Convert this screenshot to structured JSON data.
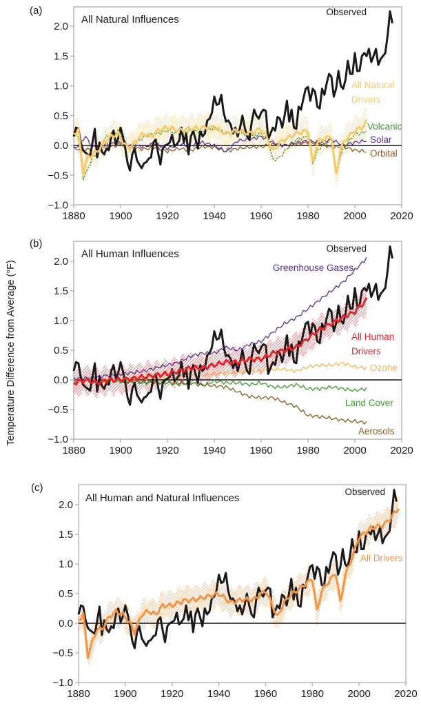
{
  "chart_data": {
    "type": "line",
    "ylabel": "Temperature Difference from Average (°F)",
    "xlim": [
      1880,
      2020
    ],
    "ylim": [
      -1.0,
      2.25
    ],
    "xticks": [
      1880,
      1900,
      1920,
      1940,
      1960,
      1980,
      2000,
      2020
    ],
    "yticks": [
      -1.0,
      -0.5,
      0.0,
      0.5,
      1.0,
      1.5,
      2.0
    ],
    "xtick_labels": [
      "1880",
      "1900",
      "1920",
      "1940",
      "1960",
      "1980",
      "2000",
      "2020"
    ],
    "ytick_labels": [
      "−1.0",
      "−0.5",
      "0.0",
      "0.5",
      "1.0",
      "1.5",
      "2.0"
    ],
    "grid": false,
    "zero_line": true,
    "observed": {
      "name": "Observed",
      "color": "#1a1a1a",
      "start_year": 1880,
      "values": [
        0.15,
        0.3,
        0.28,
        0.05,
        -0.08,
        -0.12,
        -0.15,
        -0.18,
        0.05,
        0.28,
        -0.2,
        0.05,
        -0.1,
        -0.15,
        -0.05,
        -0.08,
        0.15,
        0.25,
        0.02,
        0.12,
        0.3,
        0.15,
        -0.05,
        -0.3,
        -0.42,
        -0.15,
        -0.05,
        -0.25,
        -0.32,
        -0.38,
        -0.3,
        -0.28,
        -0.22,
        -0.2,
        0.05,
        0.1,
        -0.12,
        -0.32,
        -0.05,
        0.0,
        0.02,
        0.05,
        0.18,
        -0.02,
        0.02,
        0.08,
        0.3,
        0.05,
        0.2,
        -0.15,
        0.15,
        0.25,
        0.1,
        -0.05,
        0.25,
        0.15,
        0.2,
        0.42,
        0.45,
        0.55,
        0.82,
        0.68,
        0.7,
        0.85,
        0.55,
        0.4,
        0.42,
        0.35,
        0.2,
        0.3,
        0.15,
        0.3,
        0.5,
        0.3,
        0.15,
        0.1,
        0.4,
        0.6,
        0.5,
        0.45,
        0.55,
        0.6,
        0.58,
        0.1,
        0.2,
        0.3,
        0.25,
        0.48,
        0.45,
        0.3,
        0.5,
        0.75,
        0.4,
        0.6,
        0.3,
        0.28,
        0.65,
        0.6,
        0.78,
        0.95,
        0.98,
        0.75,
        0.95,
        0.9,
        0.65,
        0.62,
        0.95,
        0.85,
        1.05,
        1.2,
        1.15,
        0.82,
        0.95,
        1.25,
        1.0,
        0.95,
        1.1,
        1.42,
        1.2,
        1.2,
        1.55,
        1.25,
        1.25,
        1.5,
        1.55,
        1.5,
        1.62,
        1.4,
        1.5,
        1.62,
        1.35,
        1.45,
        1.5,
        1.55,
        1.85,
        2.25,
        2.05
      ]
    },
    "panels": [
      {
        "letter": "(a)",
        "title": "All Natural Influences",
        "band": {
          "name": "All Natural Drivers range",
          "color": "#f7c96a",
          "series": "all_natural"
        },
        "series": [
          {
            "key": "orbital",
            "name": "Orbital",
            "color": "#8a5a1c",
            "width": "thin",
            "x": [
              1880,
              1885,
              1890,
              1895,
              1900,
              1905,
              1910,
              1915,
              1920,
              1925,
              1930,
              1935,
              1940,
              1945,
              1950,
              1955,
              1960,
              1965,
              1970,
              1975,
              1980,
              1985,
              1990,
              1995,
              2000,
              2005
            ],
            "y": [
              -0.05,
              -0.08,
              0.0,
              -0.03,
              0.02,
              -0.04,
              -0.06,
              -0.03,
              -0.1,
              -0.05,
              -0.08,
              -0.02,
              -0.03,
              -0.1,
              -0.05,
              -0.03,
              -0.02,
              0.02,
              0.0,
              0.02,
              0.05,
              0.03,
              -0.03,
              -0.02,
              -0.08,
              -0.1
            ]
          },
          {
            "key": "solar",
            "name": "Solar",
            "color": "#5a2d91",
            "width": "thin",
            "x": [
              1880,
              1882,
              1885,
              1888,
              1890,
              1895,
              1900,
              1905,
              1910,
              1915,
              1920,
              1925,
              1930,
              1935,
              1940,
              1945,
              1950,
              1955,
              1960,
              1965,
              1970,
              1975,
              1980,
              1985,
              1990,
              1995,
              2000,
              2005
            ],
            "y": [
              -0.05,
              0.0,
              0.15,
              -0.02,
              0.0,
              0.02,
              0.05,
              0.0,
              -0.02,
              0.03,
              -0.05,
              0.02,
              0.0,
              0.05,
              0.0,
              -0.1,
              0.08,
              0.1,
              0.15,
              0.05,
              0.0,
              0.05,
              0.08,
              0.05,
              0.1,
              0.0,
              0.05,
              0.08
            ]
          },
          {
            "key": "volcanic",
            "name": "Volcanic",
            "color": "#3b9a2a",
            "width": "thin-dashed",
            "x": [
              1880,
              1882,
              1884,
              1886,
              1888,
              1890,
              1893,
              1896,
              1899,
              1902,
              1904,
              1907,
              1910,
              1913,
              1916,
              1920,
              1925,
              1930,
              1935,
              1940,
              1945,
              1950,
              1955,
              1960,
              1963,
              1965,
              1968,
              1970,
              1975,
              1980,
              1982,
              1984,
              1986,
              1990,
              1992,
              1994,
              1996,
              2000,
              2003,
              2005
            ],
            "y": [
              0.2,
              0.15,
              -0.55,
              -0.4,
              -0.2,
              -0.15,
              0.1,
              0.2,
              0.25,
              0.05,
              -0.05,
              0.05,
              0.15,
              0.18,
              0.2,
              0.25,
              0.2,
              0.25,
              0.22,
              0.3,
              0.2,
              0.25,
              0.15,
              0.2,
              0.1,
              -0.25,
              -0.2,
              -0.1,
              0.1,
              0.15,
              -0.3,
              -0.1,
              0.0,
              0.1,
              -0.5,
              -0.15,
              0.0,
              0.2,
              0.2,
              0.25
            ]
          },
          {
            "key": "all_natural",
            "name": "All Natural Drivers",
            "color": "#f7c96a",
            "width": "thick",
            "x": [
              1880,
              1882,
              1884,
              1886,
              1888,
              1890,
              1893,
              1896,
              1899,
              1902,
              1904,
              1907,
              1910,
              1913,
              1916,
              1920,
              1925,
              1930,
              1935,
              1940,
              1945,
              1950,
              1955,
              1960,
              1963,
              1965,
              1968,
              1970,
              1975,
              1980,
              1982,
              1984,
              1986,
              1990,
              1992,
              1994,
              1996,
              2000,
              2003,
              2005
            ],
            "y": [
              0.2,
              0.25,
              -0.45,
              -0.2,
              -0.15,
              -0.1,
              0.05,
              0.15,
              0.2,
              0.0,
              -0.05,
              0.1,
              0.2,
              0.15,
              0.25,
              0.3,
              0.25,
              0.28,
              0.3,
              0.3,
              0.2,
              0.25,
              0.2,
              0.28,
              0.1,
              -0.1,
              0.05,
              0.1,
              0.2,
              0.25,
              -0.3,
              0.05,
              0.1,
              0.15,
              -0.5,
              -0.05,
              0.1,
              0.25,
              0.3,
              0.4
            ]
          }
        ],
        "labels": [
          "Observed",
          "All Natural Drivers",
          "Volcanic",
          "Solar",
          "Orbital"
        ]
      },
      {
        "letter": "(b)",
        "title": "All Human Influences",
        "band": {
          "name": "All Human Drivers range",
          "color": "#e8222a",
          "series": "all_human"
        },
        "series": [
          {
            "key": "aerosols",
            "name": "Aerosols",
            "color": "#8a5a1c",
            "width": "thin",
            "x": [
              1880,
              1890,
              1900,
              1910,
              1920,
              1925,
              1930,
              1935,
              1940,
              1945,
              1950,
              1955,
              1960,
              1965,
              1970,
              1975,
              1980,
              1985,
              1990,
              1995,
              2000,
              2005
            ],
            "y": [
              -0.02,
              0.0,
              -0.02,
              -0.03,
              -0.05,
              -0.05,
              -0.05,
              -0.08,
              -0.1,
              -0.12,
              -0.2,
              -0.28,
              -0.3,
              -0.3,
              -0.38,
              -0.45,
              -0.6,
              -0.62,
              -0.65,
              -0.68,
              -0.7,
              -0.72
            ]
          },
          {
            "key": "land_cover",
            "name": "Land Cover",
            "color": "#3b9a2a",
            "width": "thin",
            "x": [
              1880,
              1890,
              1900,
              1910,
              1920,
              1925,
              1930,
              1935,
              1940,
              1945,
              1950,
              1955,
              1960,
              1965,
              1970,
              1975,
              1980,
              1985,
              1990,
              1995,
              2000,
              2005
            ],
            "y": [
              0.0,
              -0.02,
              -0.03,
              -0.05,
              -0.05,
              -0.08,
              -0.05,
              -0.1,
              -0.02,
              -0.05,
              -0.05,
              -0.08,
              -0.05,
              -0.12,
              -0.12,
              -0.08,
              -0.15,
              -0.15,
              -0.12,
              -0.15,
              -0.18,
              -0.15
            ]
          },
          {
            "key": "ozone",
            "name": "Ozone",
            "color": "#fbb04a",
            "width": "thin",
            "x": [
              1880,
              1890,
              1900,
              1910,
              1920,
              1925,
              1930,
              1935,
              1940,
              1945,
              1950,
              1955,
              1960,
              1965,
              1970,
              1975,
              1980,
              1985,
              1990,
              1995,
              2000,
              2005
            ],
            "y": [
              0.0,
              0.0,
              0.02,
              0.03,
              0.05,
              0.05,
              0.08,
              0.08,
              0.1,
              0.12,
              0.12,
              0.15,
              0.15,
              0.18,
              0.18,
              0.15,
              0.22,
              0.25,
              0.25,
              0.28,
              0.22,
              0.2
            ]
          },
          {
            "key": "greenhouse_gases",
            "name": "Greenhouse Gases",
            "color": "#5a2d91",
            "width": "thin",
            "x": [
              1880,
              1885,
              1890,
              1895,
              1900,
              1905,
              1910,
              1915,
              1920,
              1925,
              1930,
              1935,
              1940,
              1945,
              1950,
              1955,
              1960,
              1965,
              1970,
              1975,
              1980,
              1985,
              1990,
              1995,
              2000,
              2005
            ],
            "y": [
              0.02,
              0.03,
              0.05,
              0.08,
              0.1,
              0.12,
              0.15,
              0.2,
              0.25,
              0.3,
              0.4,
              0.45,
              0.45,
              0.55,
              0.5,
              0.6,
              0.65,
              0.8,
              0.95,
              1.05,
              1.2,
              1.35,
              1.5,
              1.65,
              1.85,
              2.05
            ]
          },
          {
            "key": "all_human",
            "name": "All Human Drivers",
            "color": "#e8222a",
            "width": "thick",
            "x": [
              1880,
              1885,
              1890,
              1895,
              1900,
              1905,
              1910,
              1915,
              1920,
              1925,
              1930,
              1935,
              1940,
              1945,
              1950,
              1955,
              1960,
              1965,
              1970,
              1975,
              1980,
              1985,
              1990,
              1995,
              2000,
              2005
            ],
            "y": [
              -0.05,
              0.0,
              -0.05,
              0.0,
              0.0,
              0.02,
              0.05,
              0.08,
              0.1,
              0.15,
              0.2,
              0.2,
              0.25,
              0.3,
              0.3,
              0.35,
              0.35,
              0.45,
              0.5,
              0.55,
              0.7,
              0.85,
              0.95,
              1.05,
              1.15,
              1.35
            ]
          }
        ],
        "labels": [
          "Observed",
          "Greenhouse Gases",
          "All Human Drivers",
          "Ozone",
          "Land Cover",
          "Aerosols"
        ]
      },
      {
        "letter": "(c)",
        "title": "All Human and Natural Influences",
        "band": {
          "name": "All Drivers range",
          "color": "#f79340",
          "series": "all_drivers"
        },
        "series": [
          {
            "key": "all_drivers",
            "name": "All Drivers",
            "color": "#f79340",
            "width": "thick",
            "x": [
              1880,
              1882,
              1884,
              1886,
              1888,
              1890,
              1893,
              1896,
              1899,
              1902,
              1904,
              1907,
              1910,
              1913,
              1916,
              1920,
              1925,
              1930,
              1935,
              1940,
              1945,
              1950,
              1955,
              1960,
              1963,
              1965,
              1968,
              1970,
              1975,
              1980,
              1982,
              1984,
              1986,
              1990,
              1992,
              1994,
              1996,
              2000,
              2005,
              2010,
              2013,
              2017
            ],
            "y": [
              0.05,
              0.15,
              -0.55,
              -0.3,
              -0.1,
              -0.1,
              0.1,
              0.2,
              0.15,
              0.0,
              -0.15,
              0.15,
              0.2,
              0.15,
              0.3,
              0.3,
              0.38,
              0.4,
              0.45,
              0.5,
              0.35,
              0.4,
              0.4,
              0.55,
              0.3,
              0.1,
              0.35,
              0.45,
              0.6,
              0.75,
              0.2,
              0.55,
              0.65,
              0.85,
              0.35,
              0.8,
              1.0,
              1.45,
              1.6,
              1.65,
              1.75,
              1.95
            ]
          }
        ],
        "labels": [
          "Observed",
          "All Drivers"
        ]
      }
    ]
  }
}
